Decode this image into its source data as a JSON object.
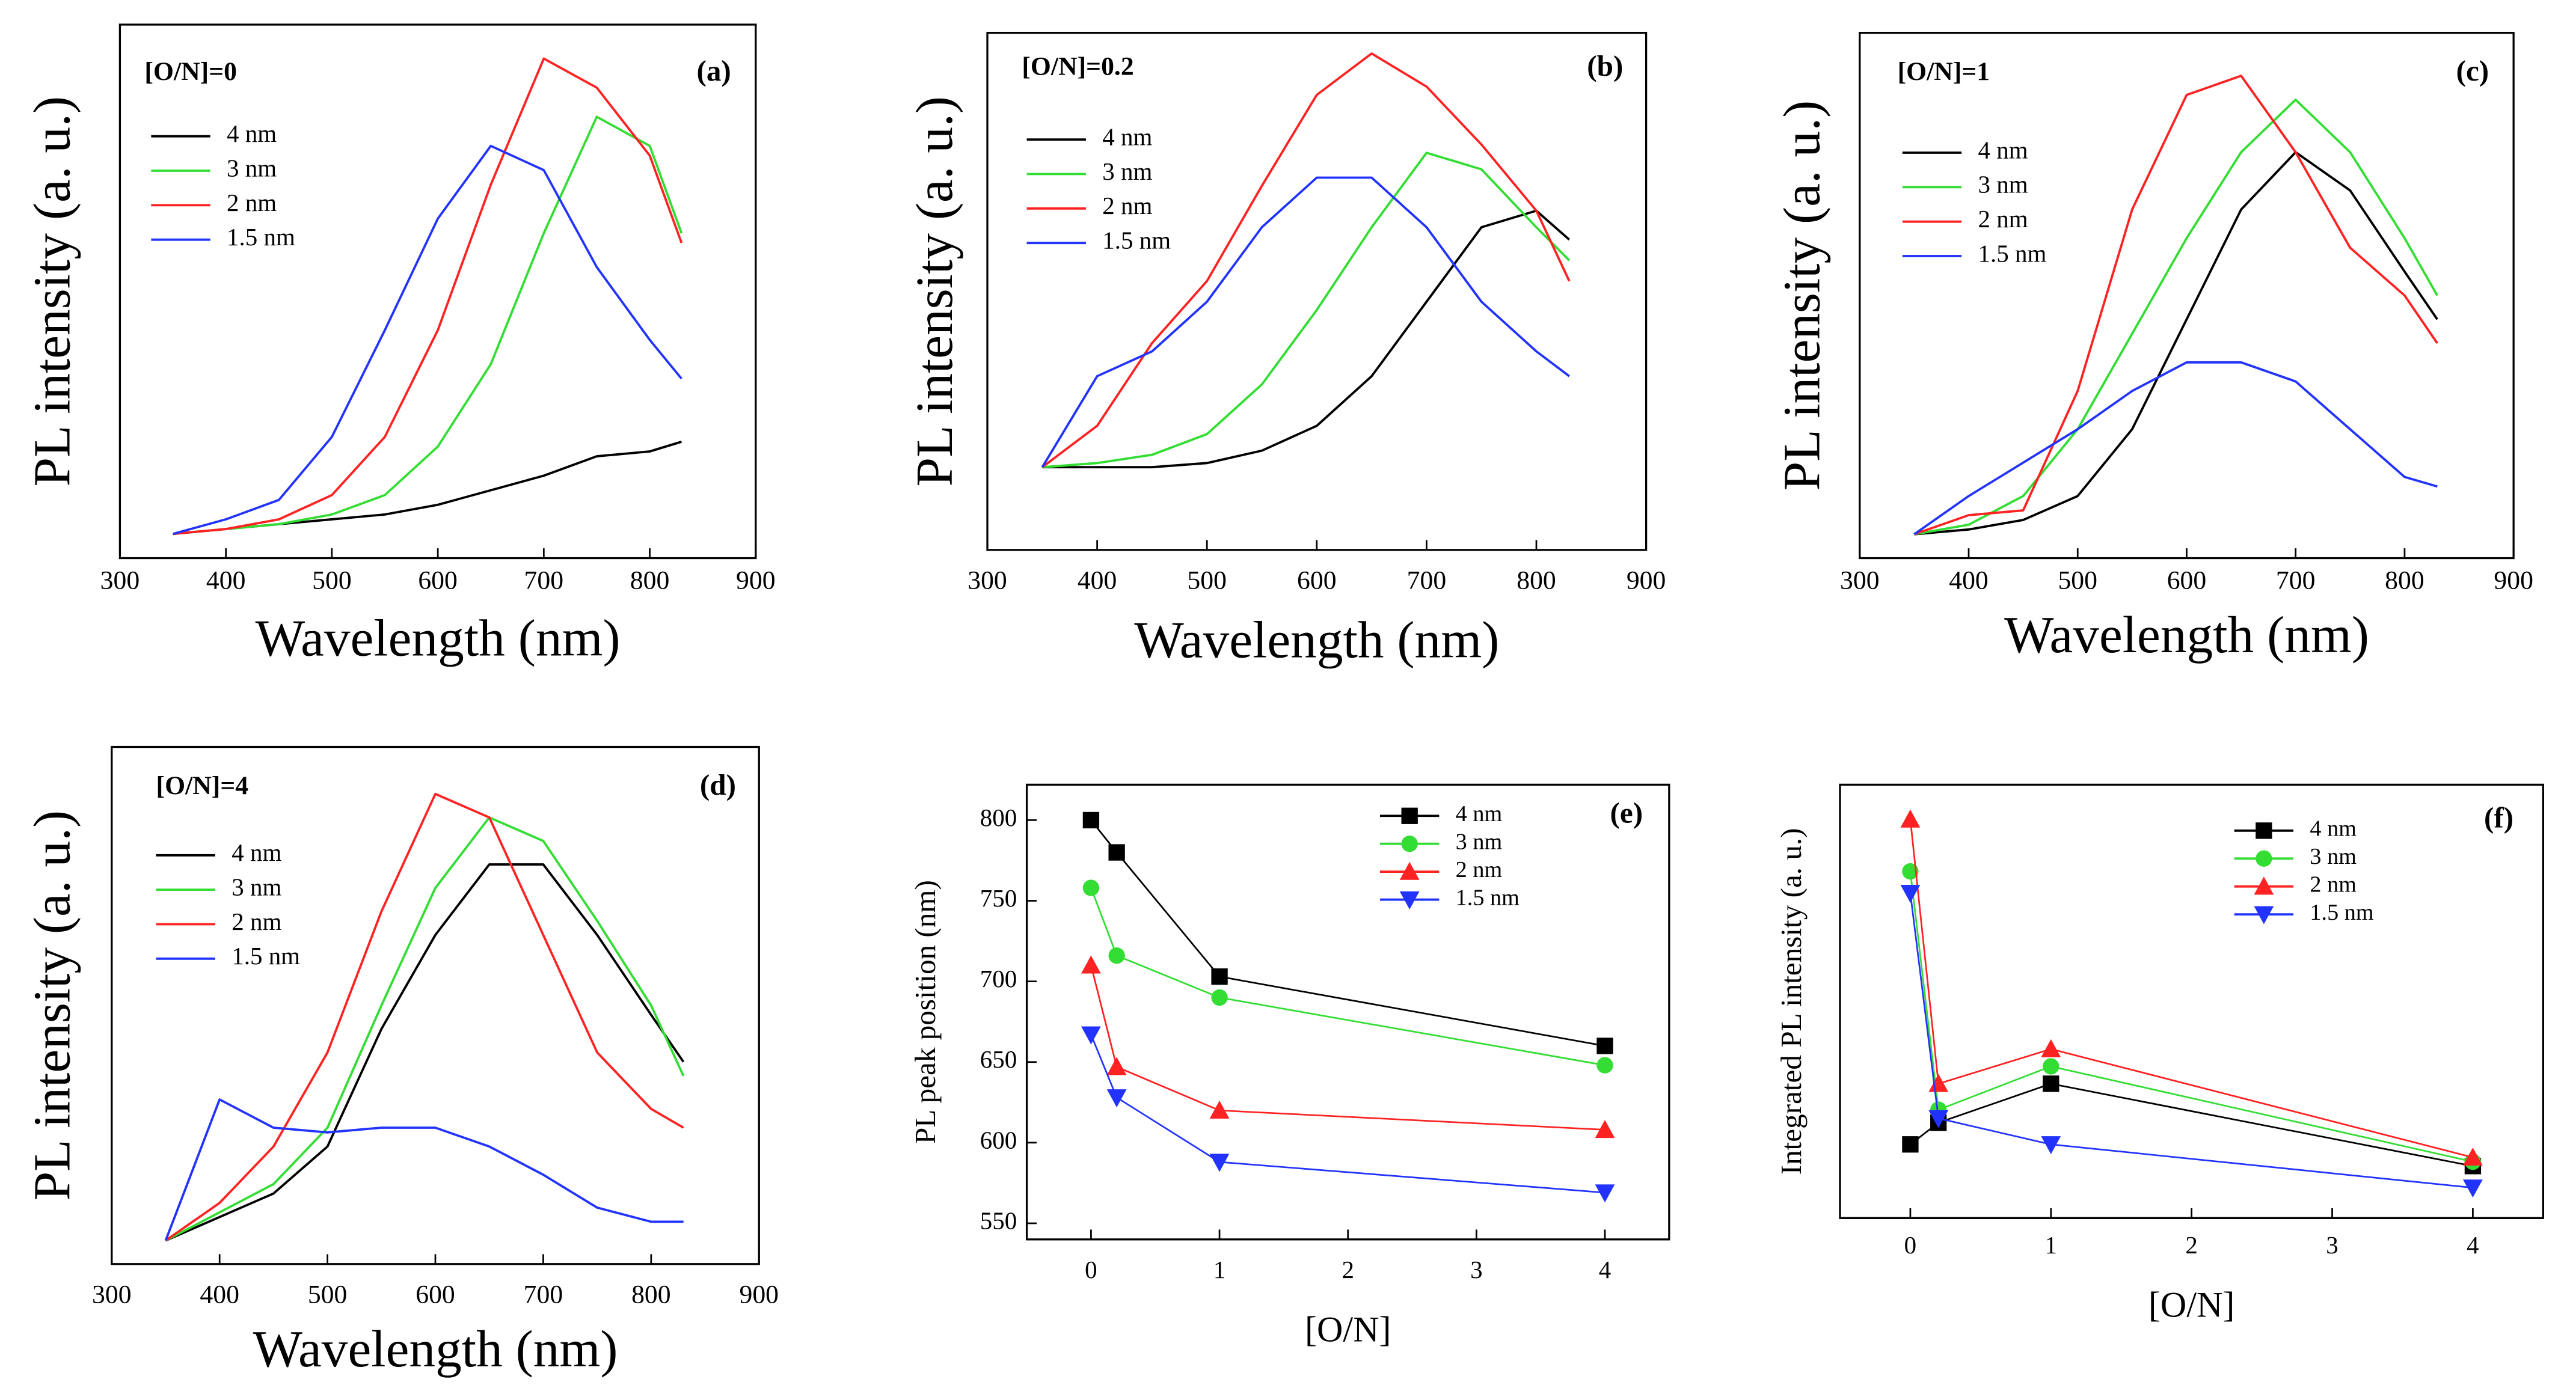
{
  "chart_data": [
    {
      "type": "line",
      "annotation": "[O/N]=0",
      "panel_label": "(a)",
      "xlabel": "Wavelength (nm)",
      "ylabel": "PL intensity (a. u.)",
      "xlim": [
        300,
        900
      ],
      "xticks": [
        300,
        400,
        500,
        600,
        700,
        800,
        900
      ],
      "ylim": [
        -5,
        105
      ],
      "x": [
        350,
        400,
        450,
        500,
        550,
        600,
        650,
        700,
        750,
        800,
        830
      ],
      "series": [
        {
          "name": "4 nm",
          "color": "#000000",
          "values": [
            0,
            1,
            2,
            3,
            4,
            6,
            9,
            12,
            16,
            17,
            19
          ]
        },
        {
          "name": "3 nm",
          "color": "#33dd33",
          "values": [
            0,
            1,
            2,
            4,
            8,
            18,
            35,
            62,
            86,
            80,
            62
          ]
        },
        {
          "name": "2 nm",
          "color": "#ff2222",
          "values": [
            0,
            1,
            3,
            8,
            20,
            42,
            72,
            98,
            92,
            78,
            60
          ]
        },
        {
          "name": "1.5 nm",
          "color": "#2233ff",
          "values": [
            0,
            3,
            7,
            20,
            42,
            65,
            80,
            75,
            55,
            40,
            32
          ]
        }
      ]
    },
    {
      "type": "line",
      "annotation": "[O/N]=0.2",
      "panel_label": "(b)",
      "xlabel": "Wavelength (nm)",
      "ylabel": "PL intensity (a. u.)",
      "xlim": [
        300,
        900
      ],
      "xticks": [
        300,
        400,
        500,
        600,
        700,
        800,
        900
      ],
      "ylim": [
        -20,
        105
      ],
      "x": [
        350,
        400,
        450,
        500,
        550,
        600,
        650,
        700,
        750,
        800,
        830
      ],
      "series": [
        {
          "name": "4 nm",
          "color": "#000000",
          "values": [
            0,
            0,
            0,
            1,
            4,
            10,
            22,
            40,
            58,
            62,
            55
          ]
        },
        {
          "name": "3 nm",
          "color": "#33dd33",
          "values": [
            0,
            1,
            3,
            8,
            20,
            38,
            58,
            76,
            72,
            58,
            50
          ]
        },
        {
          "name": "2 nm",
          "color": "#ff2222",
          "values": [
            0,
            10,
            30,
            45,
            68,
            90,
            100,
            92,
            78,
            62,
            45
          ]
        },
        {
          "name": "1.5 nm",
          "color": "#2233ff",
          "values": [
            0,
            22,
            28,
            40,
            58,
            70,
            70,
            58,
            40,
            28,
            22
          ]
        }
      ]
    },
    {
      "type": "line",
      "annotation": "[O/N]=1",
      "panel_label": "(c)",
      "xlabel": "Wavelength (nm)",
      "ylabel": "PL intensity (a. u.)",
      "xlim": [
        300,
        900
      ],
      "xticks": [
        300,
        400,
        500,
        600,
        700,
        800,
        900
      ],
      "ylim": [
        -5,
        105
      ],
      "x": [
        350,
        400,
        450,
        500,
        550,
        600,
        650,
        700,
        750,
        800,
        830
      ],
      "series": [
        {
          "name": "4 nm",
          "color": "#000000",
          "values": [
            0,
            1,
            3,
            8,
            22,
            45,
            68,
            80,
            72,
            55,
            45
          ]
        },
        {
          "name": "3 nm",
          "color": "#33dd33",
          "values": [
            0,
            2,
            8,
            22,
            42,
            62,
            80,
            91,
            80,
            62,
            50
          ]
        },
        {
          "name": "2 nm",
          "color": "#ff2222",
          "values": [
            0,
            4,
            5,
            30,
            68,
            92,
            96,
            80,
            60,
            50,
            40
          ]
        },
        {
          "name": "1.5 nm",
          "color": "#2233ff",
          "values": [
            0,
            8,
            15,
            22,
            30,
            36,
            36,
            32,
            22,
            12,
            10
          ]
        }
      ]
    },
    {
      "type": "line",
      "annotation": "[O/N]=4",
      "panel_label": "(d)",
      "xlabel": "Wavelength (nm)",
      "ylabel": "PL intensity (a. u.)",
      "xlim": [
        300,
        900
      ],
      "xticks": [
        300,
        400,
        500,
        600,
        700,
        800,
        900
      ],
      "ylim": [
        -5,
        105
      ],
      "x": [
        350,
        400,
        450,
        500,
        550,
        600,
        650,
        700,
        750,
        800,
        830
      ],
      "series": [
        {
          "name": "4 nm",
          "color": "#000000",
          "values": [
            0,
            5,
            10,
            20,
            45,
            65,
            80,
            80,
            65,
            48,
            38
          ]
        },
        {
          "name": "3 nm",
          "color": "#33dd33",
          "values": [
            0,
            6,
            12,
            24,
            50,
            75,
            90,
            85,
            68,
            50,
            35
          ]
        },
        {
          "name": "2 nm",
          "color": "#ff2222",
          "values": [
            0,
            8,
            20,
            40,
            70,
            95,
            90,
            65,
            40,
            28,
            24
          ]
        },
        {
          "name": "1.5 nm",
          "color": "#2233ff",
          "values": [
            0,
            30,
            24,
            23,
            24,
            24,
            20,
            14,
            7,
            4,
            4
          ]
        }
      ]
    },
    {
      "type": "line",
      "panel_label": "(e)",
      "xlabel": "[O/N]",
      "ylabel": "PL peak position (nm)",
      "xlim": [
        -0.5,
        4.5
      ],
      "xticks": [
        0,
        1,
        2,
        3,
        4
      ],
      "ylim": [
        540,
        822
      ],
      "yticks": [
        550,
        600,
        650,
        700,
        750,
        800
      ],
      "x": [
        0,
        0.2,
        1,
        4
      ],
      "series": [
        {
          "name": "4 nm",
          "color": "#000000",
          "marker": "square",
          "values": [
            800,
            780,
            703,
            660
          ]
        },
        {
          "name": "3 nm",
          "color": "#33dd33",
          "marker": "circle",
          "values": [
            758,
            716,
            690,
            648
          ]
        },
        {
          "name": "2 nm",
          "color": "#ff2222",
          "marker": "triangle-up",
          "values": [
            710,
            647,
            620,
            608
          ]
        },
        {
          "name": "1.5 nm",
          "color": "#2233ff",
          "marker": "triangle-down",
          "values": [
            667,
            628,
            588,
            569
          ]
        }
      ]
    },
    {
      "type": "line",
      "panel_label": "(f)",
      "xlabel": "[O/N]",
      "ylabel": "Integrated PL intensity (a. u.)",
      "xlim": [
        -0.5,
        4.5
      ],
      "xticks": [
        0,
        1,
        2,
        3,
        4
      ],
      "ylim": [
        0,
        100
      ],
      "x": [
        0,
        0.2,
        1,
        4
      ],
      "series": [
        {
          "name": "4 nm",
          "color": "#000000",
          "marker": "square",
          "values": [
            17,
            22,
            31,
            12
          ]
        },
        {
          "name": "3 nm",
          "color": "#33dd33",
          "marker": "circle",
          "values": [
            80,
            25,
            35,
            13
          ]
        },
        {
          "name": "2 nm",
          "color": "#ff2222",
          "marker": "triangle-up",
          "values": [
            92,
            31,
            39,
            14
          ]
        },
        {
          "name": "1.5 nm",
          "color": "#2233ff",
          "marker": "triangle-down",
          "values": [
            75,
            23,
            17,
            7
          ]
        }
      ]
    }
  ]
}
